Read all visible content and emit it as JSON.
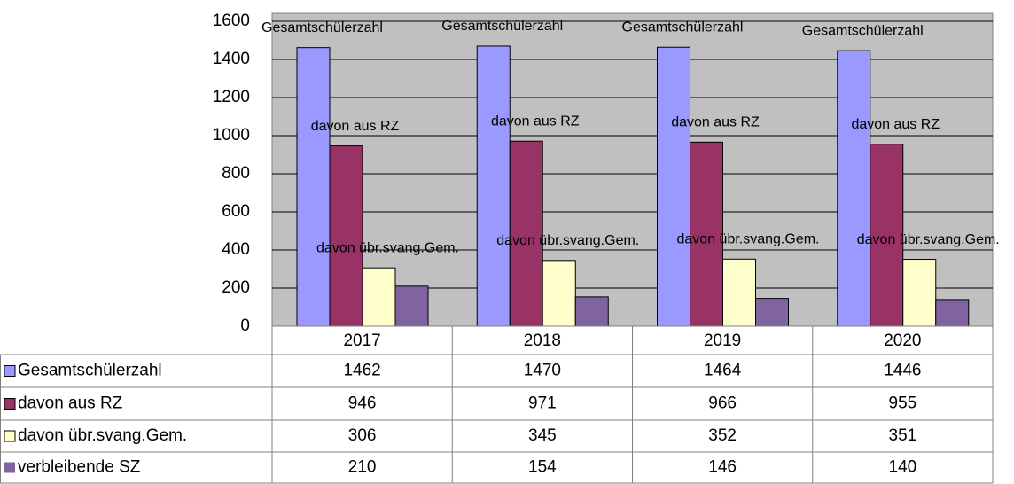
{
  "chart_data": {
    "type": "bar",
    "categories": [
      "2017",
      "2018",
      "2019",
      "2020"
    ],
    "series": [
      {
        "name": "Gesamtschülerzahl",
        "color": "#9999ff",
        "values": [
          1462,
          1470,
          1464,
          1446
        ]
      },
      {
        "name": "davon aus RZ",
        "color": "#993366",
        "values": [
          946,
          971,
          966,
          955
        ]
      },
      {
        "name": "davon übr.svang.Gem.",
        "color": "#ffffcc",
        "values": [
          306,
          345,
          352,
          351
        ]
      },
      {
        "name": "verbleibende SZ",
        "color": "#8064a2",
        "values": [
          210,
          154,
          146,
          140
        ]
      }
    ],
    "ylim": [
      0,
      1600
    ],
    "yticks": [
      0,
      200,
      400,
      600,
      800,
      1000,
      1200,
      1400,
      1600
    ],
    "grid": true,
    "plot_background": "#c0c0c0"
  }
}
